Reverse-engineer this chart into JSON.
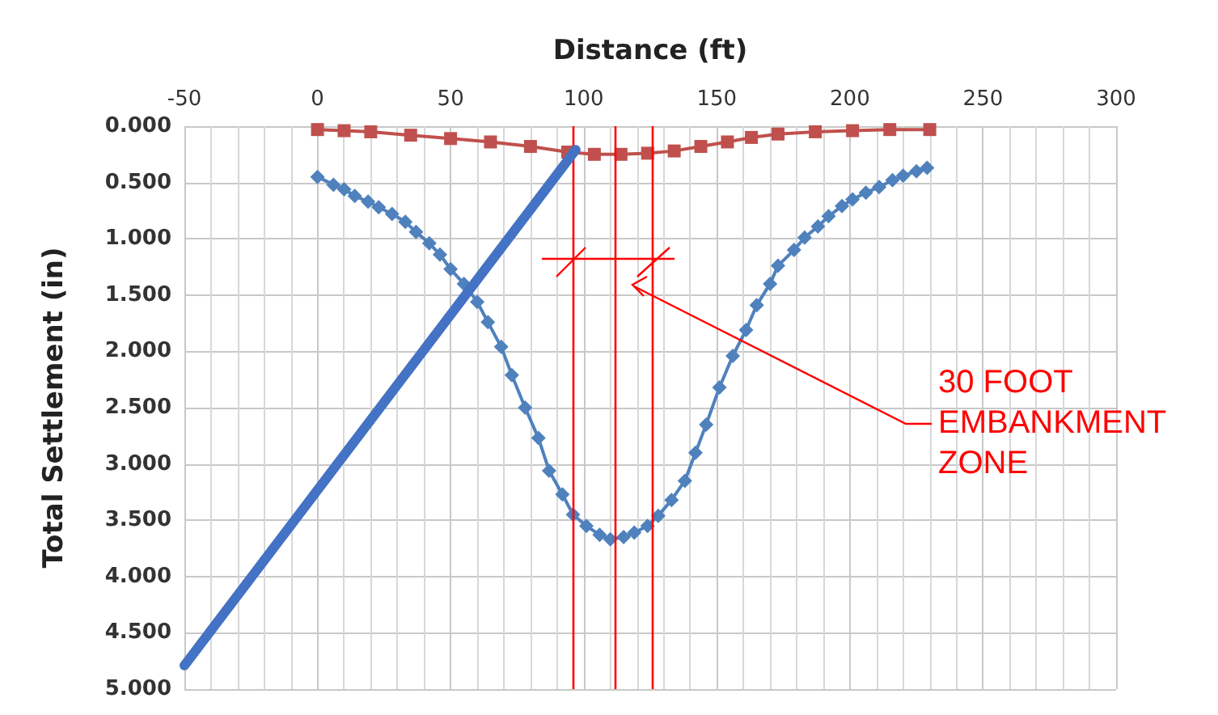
{
  "chart_data": {
    "type": "line",
    "xlabel": "Distance (ft)",
    "ylabel": "Total Settlement (in)",
    "xlim": [
      -50,
      300
    ],
    "xticks": [
      -50,
      0,
      50,
      100,
      150,
      200,
      250,
      300
    ],
    "ylim": [
      5,
      0
    ],
    "yticks": [
      {
        "value": 0,
        "label": "0.000"
      },
      {
        "value": 0.5,
        "label": "0.500"
      },
      {
        "value": 1,
        "label": "1.000"
      },
      {
        "value": 1.5,
        "label": "1.500"
      },
      {
        "value": 2,
        "label": "2.000"
      },
      {
        "value": 2.5,
        "label": "2.500"
      },
      {
        "value": 3,
        "label": "3.000"
      },
      {
        "value": 3.5,
        "label": "3.500"
      },
      {
        "value": 4,
        "label": "4.000"
      },
      {
        "value": 4.5,
        "label": "4.500"
      },
      {
        "value": 5,
        "label": "5.000"
      }
    ],
    "grid": true,
    "legend": false,
    "series": [
      {
        "color": "#c0504d",
        "marker": "square",
        "x": [
          0,
          10,
          20,
          35,
          50,
          65,
          80,
          94,
          104,
          114,
          124,
          134,
          144,
          154,
          163,
          173,
          187,
          201,
          215,
          230
        ],
        "values": [
          0.03,
          0.04,
          0.05,
          0.08,
          0.11,
          0.14,
          0.18,
          0.23,
          0.25,
          0.25,
          0.24,
          0.22,
          0.18,
          0.14,
          0.1,
          0.07,
          0.05,
          0.04,
          0.03,
          0.03
        ]
      },
      {
        "color": "#4f81bd",
        "marker": "diamond",
        "x": [
          0,
          6,
          10,
          14,
          19,
          23,
          28,
          33,
          37,
          42,
          46,
          50,
          55,
          60,
          64,
          69,
          73,
          78,
          83,
          87,
          92,
          96,
          101,
          106,
          110,
          115,
          119,
          124,
          128,
          133,
          138,
          142,
          146,
          151,
          156,
          161,
          165,
          170,
          173,
          179,
          183,
          188,
          192,
          197,
          201,
          206,
          211,
          216,
          220,
          225,
          229
        ],
        "values": [
          0.45,
          0.52,
          0.56,
          0.62,
          0.67,
          0.72,
          0.78,
          0.85,
          0.94,
          1.04,
          1.14,
          1.27,
          1.4,
          1.56,
          1.74,
          1.96,
          2.21,
          2.5,
          2.77,
          3.06,
          3.27,
          3.45,
          3.55,
          3.63,
          3.67,
          3.65,
          3.61,
          3.55,
          3.46,
          3.32,
          3.15,
          2.9,
          2.65,
          2.32,
          2.04,
          1.81,
          1.59,
          1.4,
          1.24,
          1.1,
          0.99,
          0.89,
          0.8,
          0.71,
          0.65,
          0.59,
          0.54,
          0.48,
          0.44,
          0.4,
          0.37
        ]
      },
      {
        "color": "#4472c4",
        "marker": "none",
        "x": [
          -50,
          97
        ],
        "values": [
          4.79,
          0.21
        ]
      }
    ],
    "ref_lines": [
      {
        "axis": "x",
        "value": 96,
        "color": "#ff0000"
      },
      {
        "axis": "x",
        "value": 112,
        "color": "#ff0000"
      },
      {
        "axis": "x",
        "value": 126,
        "color": "#ff0000"
      }
    ],
    "annotations": [
      "30 FOOT\nEMBANKMENT\nZONE"
    ]
  }
}
